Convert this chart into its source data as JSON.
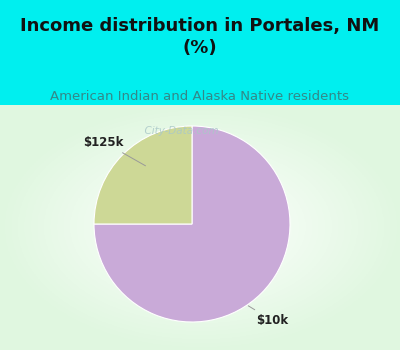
{
  "title": "Income distribution in Portales, NM\n(%)",
  "subtitle": "American Indian and Alaska Native residents",
  "slices": [
    75.0,
    25.0
  ],
  "labels": [
    "$10k",
    "$125k"
  ],
  "colors": [
    "#c9aad8",
    "#cdd896"
  ],
  "background_cyan": "#00efef",
  "title_color": "#111111",
  "subtitle_color": "#338888",
  "watermark": "  City-Data.com",
  "watermark_color": "#aac8c8",
  "start_angle": 90,
  "figsize": [
    4.0,
    3.5
  ],
  "dpi": 100,
  "title_fontsize": 13,
  "subtitle_fontsize": 9.5,
  "label_fontsize": 8.5
}
